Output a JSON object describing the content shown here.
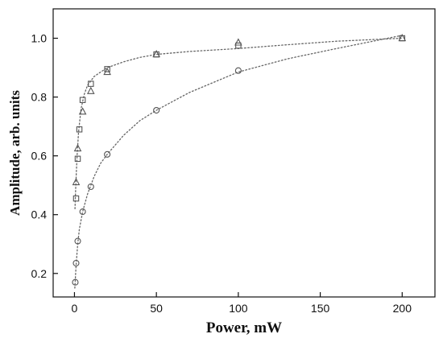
{
  "chart_data": {
    "type": "scatter",
    "xlabel": "Power, mW",
    "ylabel": "Amplitude, arb. units",
    "xlim": [
      -13,
      220
    ],
    "ylim": [
      0.12,
      1.1
    ],
    "xticks": [
      0,
      50,
      100,
      150,
      200
    ],
    "yticks": [
      0.2,
      0.4,
      0.6,
      0.8,
      1.0
    ],
    "x_tick_labels": [
      "0",
      "50",
      "100",
      "150",
      "200"
    ],
    "y_tick_labels": [
      "0.2",
      "0.4",
      "0.6",
      "0.8",
      "1.0"
    ],
    "grid": false,
    "legend": "none",
    "series": [
      {
        "marker": "square",
        "x": [
          1,
          2,
          3,
          5,
          10,
          20,
          50,
          100,
          200
        ],
        "y": [
          0.455,
          0.59,
          0.69,
          0.79,
          0.845,
          0.895,
          0.945,
          0.975,
          1.0
        ]
      },
      {
        "marker": "triangle",
        "x": [
          1,
          2,
          5,
          10,
          20,
          50,
          100,
          200
        ],
        "y": [
          0.51,
          0.625,
          0.75,
          0.82,
          0.885,
          0.945,
          0.985,
          1.0
        ]
      },
      {
        "marker": "circle",
        "x": [
          0.5,
          1,
          2,
          5,
          10,
          20,
          50,
          100
        ],
        "y": [
          0.17,
          0.235,
          0.31,
          0.41,
          0.495,
          0.605,
          0.755,
          0.89
        ]
      }
    ],
    "fit_curves": [
      {
        "style": "dotted",
        "x": [
          0.3,
          0.8,
          1.5,
          2.5,
          4,
          6,
          8,
          12,
          16,
          20,
          30,
          40,
          50,
          70,
          100,
          130,
          160,
          200
        ],
        "y": [
          0.42,
          0.5,
          0.59,
          0.68,
          0.76,
          0.81,
          0.84,
          0.87,
          0.885,
          0.9,
          0.92,
          0.935,
          0.945,
          0.955,
          0.965,
          0.978,
          0.99,
          1.0
        ]
      },
      {
        "style": "dotted",
        "x": [
          0.2,
          0.5,
          1,
          2,
          3,
          5,
          8,
          12,
          16,
          20,
          30,
          40,
          50,
          70,
          100,
          130,
          160,
          200
        ],
        "y": [
          0.15,
          0.18,
          0.23,
          0.3,
          0.35,
          0.41,
          0.47,
          0.53,
          0.575,
          0.605,
          0.67,
          0.72,
          0.755,
          0.815,
          0.885,
          0.93,
          0.965,
          1.01
        ]
      }
    ],
    "colors": {
      "axis": "#111111",
      "marker": "#555555",
      "curve": "#666666"
    }
  }
}
